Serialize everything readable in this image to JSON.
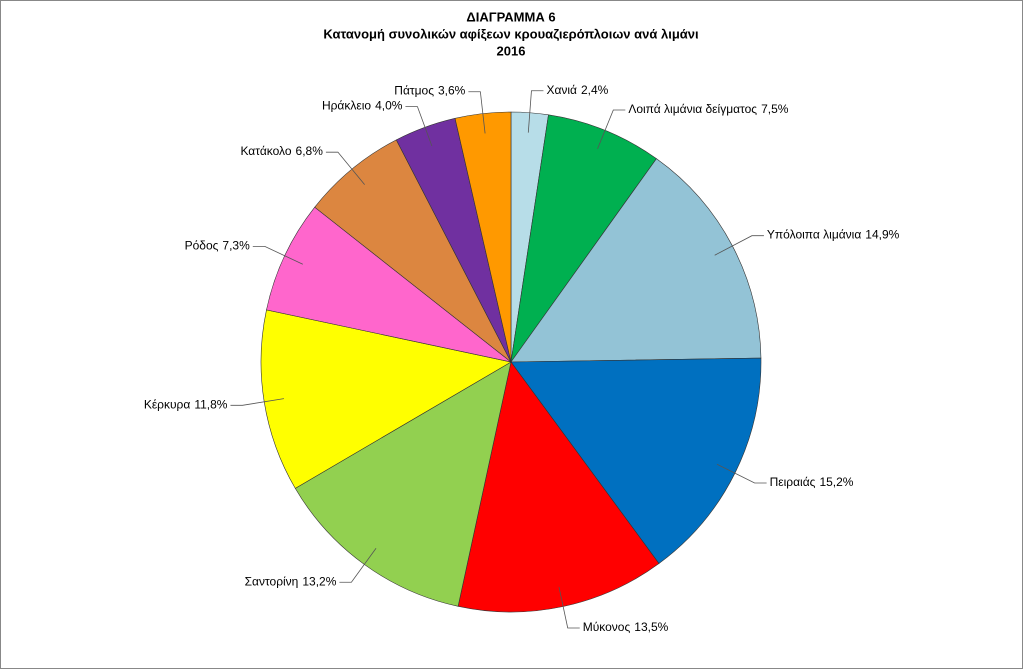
{
  "chart_data": {
    "type": "pie",
    "title": [
      "ΔΙΑΓΡΑΜΜΑ 6",
      "Κατανομή συνολικών αφίξεων κρουαζιερόπλοιων ανά  λιμάνι",
      "2016"
    ],
    "categories": [
      "Χανιά",
      "Λοιπά λιμάνια δείγματος",
      "Υπόλοιπα λιμάνια",
      "Πειραιάς",
      "Μύκονος",
      "Σαντορίνη",
      "Κέρκυρα",
      "Ρόδος",
      "Κατάκολο",
      "Ηράκλειο",
      "Πάτμος"
    ],
    "values": [
      2.4,
      7.5,
      14.9,
      15.2,
      13.5,
      13.2,
      11.8,
      7.3,
      6.8,
      4.0,
      3.6
    ],
    "value_labels": [
      "2,4%",
      "7,5%",
      "14,9%",
      "15,2%",
      "13,5%",
      "13,2%",
      "11,8%",
      "7,3%",
      "6,8%",
      "4,0%",
      "3,6%"
    ],
    "colors": [
      "#b7dde8",
      "#00b050",
      "#93c3d6",
      "#0070c0",
      "#ff0000",
      "#92d050",
      "#ffff00",
      "#ff66cc",
      "#dc8640",
      "#7030a0",
      "#ff9900"
    ]
  }
}
